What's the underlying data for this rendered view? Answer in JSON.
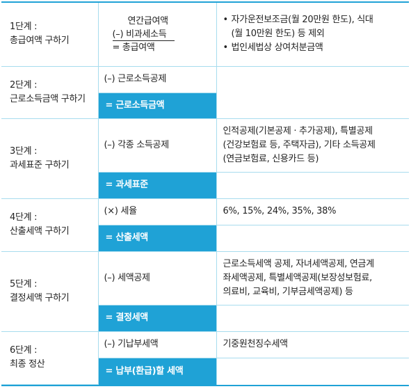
{
  "rows": [
    {
      "step": "1단계 :",
      "name": "총급여액 구하기",
      "calc": {
        "line1": "연간급여액",
        "line2": "(–) 비과세소득",
        "line3": "=  총급여액"
      },
      "desc": {
        "bullet": "•",
        "b1_line1": "자가운전보조금(월 20만원 한도), 식대",
        "b1_line2": "(월 10만원 한도) 등 제외",
        "b2": "법인세법상 상여처분금액"
      }
    },
    {
      "step": "2단계 :",
      "name": "근로소득금액 구하기",
      "op": "(–) 근로소득공제",
      "result": "=  근로소득금액",
      "desc": ""
    },
    {
      "step": "3단계 :",
      "name": "과세표준 구하기",
      "op": "(–) 각종 소득공제",
      "result": "=  과세표준",
      "desc_lines": [
        "인적공제(기본공제 · 추가공제), 특별공제",
        "(건강보험료 등, 주택자금), 기타 소득공제",
        "(연금보험료, 신용카드 등)"
      ]
    },
    {
      "step": "4단계 :",
      "name": "산출세액 구하기",
      "op": "(×) 세율",
      "result": "=  산출세액",
      "desc": "6%, 15%, 24%, 35%, 38%"
    },
    {
      "step": "5단계 :",
      "name": "결정세액 구하기",
      "op": "(–) 세액공제",
      "result": "=  결정세액",
      "desc_lines": [
        "근로소득세액 공제, 자녀세액공제, 연금계",
        "좌세액공제, 특별세액공제(보장성보험료,",
        "의료비, 교육비, 기부금세액공제) 등"
      ]
    },
    {
      "step": "6단계 :",
      "name": "최종 정산",
      "op": "(–) 기납부세액",
      "result": "=  납부(환급)할 세액",
      "desc": "기중원천징수세액"
    }
  ],
  "colors": {
    "accent": "#1fa2d6",
    "border": "#a7dcee",
    "text": "#222222"
  }
}
